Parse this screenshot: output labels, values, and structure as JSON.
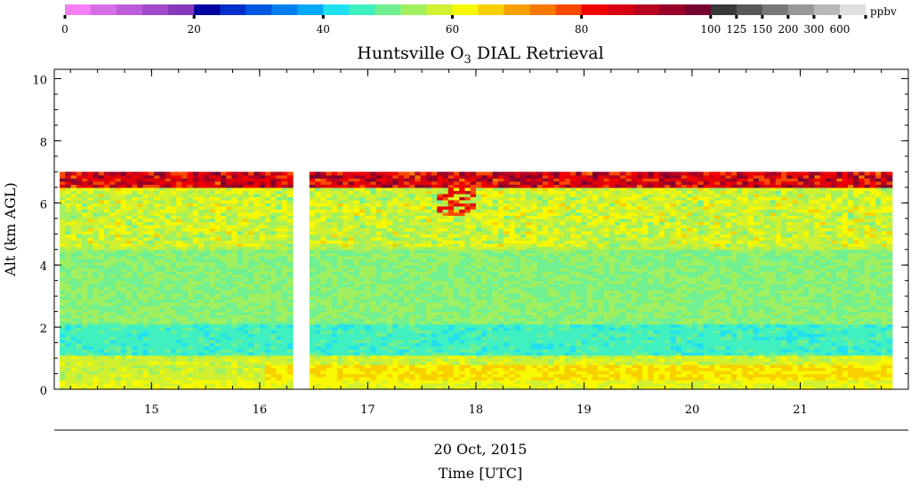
{
  "chart_data": {
    "type": "heatmap",
    "title": "Huntsville O",
    "title_sub": "3",
    "title_rest": " DIAL Retrieval",
    "xlabel": "Time [UTC]",
    "date_label": "20 Oct, 2015",
    "ylabel": "Alt (km AGL)",
    "units": "ppbv",
    "xlim": [
      14.1,
      22.0
    ],
    "ylim": [
      0,
      10.3
    ],
    "data_xlim": [
      14.15,
      21.85
    ],
    "data_ylim": [
      0,
      7.0
    ],
    "gap": [
      16.35,
      16.42
    ],
    "x_ticks": [
      {
        "value": 15,
        "label": "15"
      },
      {
        "value": 16,
        "label": "16"
      },
      {
        "value": 17,
        "label": "17"
      },
      {
        "value": 18,
        "label": "18"
      },
      {
        "value": 19,
        "label": "19"
      },
      {
        "value": 20,
        "label": "20"
      },
      {
        "value": 21,
        "label": "21"
      }
    ],
    "y_ticks": [
      {
        "value": 0,
        "label": "0"
      },
      {
        "value": 2,
        "label": "2"
      },
      {
        "value": 4,
        "label": "4"
      },
      {
        "value": 6,
        "label": "6"
      },
      {
        "value": 8,
        "label": "8"
      },
      {
        "value": 10,
        "label": "10"
      }
    ],
    "colorbar": {
      "colors": [
        "#f47ff4",
        "#d86ee6",
        "#bd5cd8",
        "#a24aca",
        "#8738bc",
        "#0000a0",
        "#0030c8",
        "#0058e0",
        "#0080f0",
        "#00a8f8",
        "#20e0f0",
        "#40f0c0",
        "#70f090",
        "#a0f060",
        "#d0f030",
        "#f8f800",
        "#f8d000",
        "#f8a000",
        "#f87800",
        "#f84800",
        "#f00000",
        "#d80010",
        "#b80020",
        "#980028",
        "#780030",
        "#383838",
        "#585858",
        "#787878",
        "#989898",
        "#b8b8b8",
        "#e0e0e0"
      ],
      "labels": [
        {
          "index": 0,
          "label": "0"
        },
        {
          "index": 5,
          "label": "20"
        },
        {
          "index": 10,
          "label": "40"
        },
        {
          "index": 15,
          "label": "60"
        },
        {
          "index": 20,
          "label": "80"
        },
        {
          "index": 25,
          "label": "100"
        },
        {
          "index": 26,
          "label": "125"
        },
        {
          "index": 27,
          "label": "150"
        },
        {
          "index": 28,
          "label": "200"
        },
        {
          "index": 29,
          "label": "300"
        },
        {
          "index": 30,
          "label": "600"
        }
      ]
    },
    "layers": [
      {
        "altitude_range": [
          0,
          0.3
        ],
        "ozone_ppbv": 60,
        "note": "yellow near surface"
      },
      {
        "altitude_range": [
          0.2,
          0.8
        ],
        "ozone_ppbv": 64,
        "note": "orange after 16 UTC"
      },
      {
        "altitude_range": [
          0.8,
          1.1
        ],
        "ozone_ppbv": 58
      },
      {
        "altitude_range": [
          1.1,
          2.1
        ],
        "ozone_ppbv": 46
      },
      {
        "altitude_range": [
          2.1,
          4.5
        ],
        "ozone_ppbv": 52
      },
      {
        "altitude_range": [
          4.5,
          6.5
        ],
        "ozone_ppbv": 56
      },
      {
        "altitude_range": [
          6.5,
          7.0
        ],
        "ozone_ppbv": 80
      }
    ]
  }
}
